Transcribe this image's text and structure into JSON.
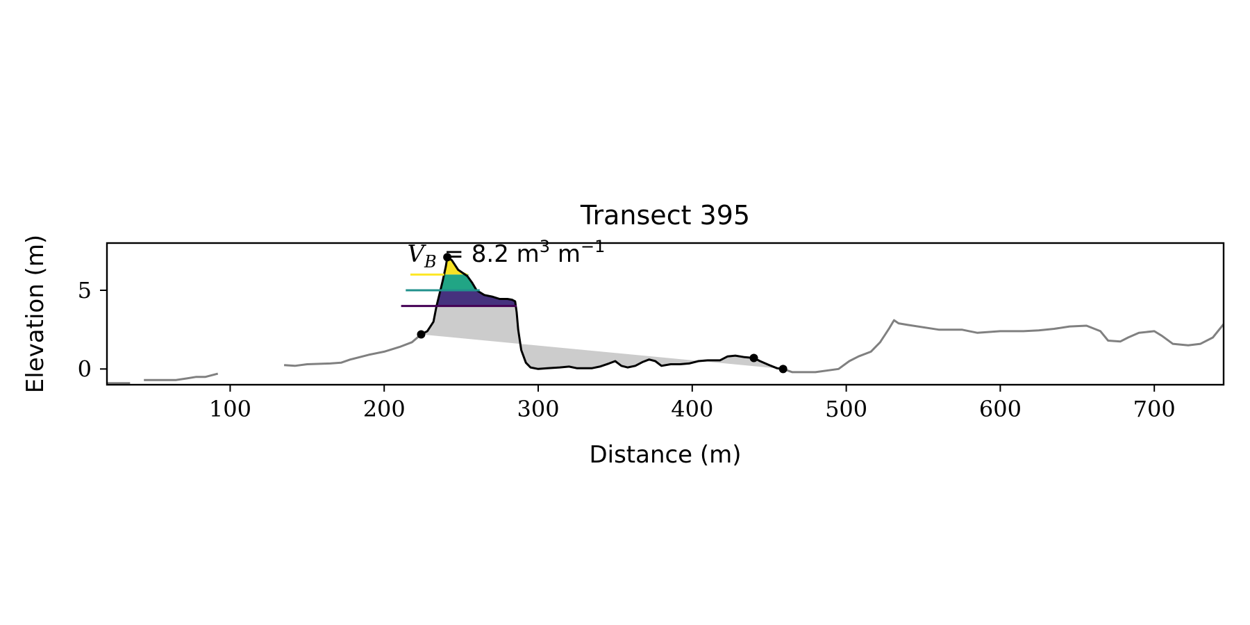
{
  "chart_data": {
    "type": "line",
    "title": "Transect 395",
    "xlabel": "Distance (m)",
    "ylabel": "Elevation (m)",
    "xlim": [
      20,
      745
    ],
    "ylim": [
      -1,
      8
    ],
    "xticks": [
      100,
      200,
      300,
      400,
      500,
      600,
      700
    ],
    "xtick_labels": [
      "100",
      "200",
      "300",
      "400",
      "500",
      "600",
      "700"
    ],
    "yticks": [
      0,
      5
    ],
    "ytick_labels": [
      "0",
      "5"
    ],
    "grid": false,
    "annotation": {
      "lead": "V",
      "subscript": "B",
      "rest": " = 8.2 m",
      "sup1": "3",
      "mid": " m",
      "sup2": "−1",
      "x": 215,
      "y": 6.8
    },
    "colors": {
      "full_profile": "#808080",
      "dune_profile": "#000000",
      "volume_fill": "#cccccc",
      "level_low": "#440154",
      "level_mid": "#21918c",
      "level_high": "#fde725",
      "fill_low": "#46327e",
      "fill_mid": "#21a585",
      "fill_high": "#f7e225"
    },
    "series": [
      {
        "role": "full_profile",
        "segments": [
          [
            [
              20,
              -0.9
            ],
            [
              35,
              -0.9
            ]
          ],
          [
            [
              44,
              -0.7
            ],
            [
              55,
              -0.7
            ],
            [
              65,
              -0.7
            ],
            [
              72,
              -0.6
            ],
            [
              78,
              -0.5
            ],
            [
              84,
              -0.5
            ],
            [
              92,
              -0.3
            ]
          ],
          [
            [
              135,
              0.25
            ],
            [
              142,
              0.2
            ],
            [
              150,
              0.3
            ],
            [
              165,
              0.35
            ],
            [
              172,
              0.4
            ],
            [
              178,
              0.6
            ],
            [
              190,
              0.9
            ],
            [
              200,
              1.1
            ],
            [
              210,
              1.4
            ],
            [
              218,
              1.7
            ],
            [
              224,
              2.2
            ]
          ],
          [
            [
              459,
              0
            ],
            [
              465,
              -0.2
            ],
            [
              468,
              -0.2
            ],
            [
              480,
              -0.2
            ],
            [
              495,
              0
            ],
            [
              502,
              0.5
            ],
            [
              508,
              0.8
            ],
            [
              516,
              1.1
            ],
            [
              522,
              1.7
            ],
            [
              528,
              2.6
            ],
            [
              531,
              3.1
            ],
            [
              534,
              2.9
            ],
            [
              540,
              2.8
            ],
            [
              560,
              2.5
            ],
            [
              575,
              2.5
            ],
            [
              585,
              2.3
            ],
            [
              600,
              2.4
            ],
            [
              615,
              2.4
            ],
            [
              625,
              2.45
            ],
            [
              635,
              2.55
            ],
            [
              645,
              2.7
            ],
            [
              656,
              2.75
            ],
            [
              665,
              2.4
            ],
            [
              670,
              1.8
            ],
            [
              678,
              1.75
            ],
            [
              683,
              2.0
            ],
            [
              690,
              2.3
            ],
            [
              700,
              2.4
            ],
            [
              705,
              2.1
            ],
            [
              712,
              1.6
            ],
            [
              722,
              1.5
            ],
            [
              730,
              1.6
            ],
            [
              738,
              2.0
            ],
            [
              745,
              2.85
            ]
          ]
        ]
      },
      {
        "role": "dune_profile",
        "points": [
          [
            224,
            2.2
          ],
          [
            228,
            2.4
          ],
          [
            232,
            3.0
          ],
          [
            234,
            4.0
          ],
          [
            236,
            4.8
          ],
          [
            238,
            5.6
          ],
          [
            240,
            6.5
          ],
          [
            241,
            7.1
          ],
          [
            244,
            6.9
          ],
          [
            248,
            6.3
          ],
          [
            254,
            5.9
          ],
          [
            257,
            5.5
          ],
          [
            260,
            5.0
          ],
          [
            265,
            4.7
          ],
          [
            270,
            4.6
          ],
          [
            275,
            4.45
          ],
          [
            280,
            4.45
          ],
          [
            283,
            4.4
          ],
          [
            285,
            4.3
          ],
          [
            286,
            3.6
          ],
          [
            287,
            2.5
          ],
          [
            289,
            1.2
          ],
          [
            292,
            0.4
          ],
          [
            295,
            0.1
          ],
          [
            300,
            0.0
          ],
          [
            306,
            0.05
          ],
          [
            314,
            0.1
          ],
          [
            320,
            0.15
          ],
          [
            325,
            0.05
          ],
          [
            335,
            0.05
          ],
          [
            340,
            0.15
          ],
          [
            346,
            0.35
          ],
          [
            350,
            0.5
          ],
          [
            354,
            0.2
          ],
          [
            358,
            0.1
          ],
          [
            363,
            0.2
          ],
          [
            368,
            0.45
          ],
          [
            372,
            0.6
          ],
          [
            376,
            0.5
          ],
          [
            380,
            0.2
          ],
          [
            386,
            0.3
          ],
          [
            392,
            0.3
          ],
          [
            398,
            0.35
          ],
          [
            404,
            0.5
          ],
          [
            410,
            0.55
          ],
          [
            418,
            0.55
          ],
          [
            423,
            0.8
          ],
          [
            428,
            0.85
          ],
          [
            434,
            0.75
          ],
          [
            440,
            0.7
          ],
          [
            444,
            0.5
          ],
          [
            450,
            0.25
          ],
          [
            455,
            0.05
          ],
          [
            459,
            0.0
          ]
        ]
      }
    ],
    "markers": [
      [
        224,
        2.2
      ],
      [
        241,
        7.1
      ],
      [
        440,
        0.7
      ],
      [
        459,
        0.0
      ]
    ],
    "volume_region": {
      "polygon": [
        [
          232,
          3.0
        ],
        [
          234,
          4.0
        ],
        [
          286,
          4.0
        ],
        [
          287,
          2.5
        ],
        [
          289,
          1.2
        ],
        [
          292,
          0.4
        ],
        [
          295,
          0.1
        ],
        [
          300,
          0.0
        ],
        [
          306,
          0.05
        ],
        [
          314,
          0.1
        ],
        [
          320,
          0.15
        ],
        [
          325,
          0.05
        ],
        [
          335,
          0.05
        ],
        [
          340,
          0.15
        ],
        [
          346,
          0.35
        ],
        [
          350,
          0.5
        ],
        [
          354,
          0.2
        ],
        [
          358,
          0.1
        ],
        [
          363,
          0.2
        ],
        [
          368,
          0.45
        ],
        [
          372,
          0.6
        ],
        [
          376,
          0.5
        ],
        [
          380,
          0.2
        ],
        [
          386,
          0.3
        ],
        [
          392,
          0.3
        ],
        [
          398,
          0.35
        ],
        [
          404,
          0.5
        ],
        [
          410,
          0.55
        ],
        [
          418,
          0.55
        ],
        [
          423,
          0.8
        ],
        [
          428,
          0.85
        ],
        [
          434,
          0.75
        ],
        [
          440,
          0.7
        ],
        [
          444,
          0.5
        ],
        [
          450,
          0.25
        ],
        [
          455,
          0.05
        ],
        [
          459,
          0.0
        ],
        [
          224,
          2.2
        ],
        [
          228,
          2.4
        ]
      ]
    },
    "level_fills": [
      {
        "level": "low",
        "polygon": [
          [
            234,
            4.0
          ],
          [
            236,
            4.8
          ],
          [
            237,
            5.0
          ],
          [
            260,
            5.0
          ],
          [
            265,
            4.7
          ],
          [
            270,
            4.6
          ],
          [
            275,
            4.45
          ],
          [
            280,
            4.45
          ],
          [
            283,
            4.4
          ],
          [
            285,
            4.3
          ],
          [
            286,
            4.0
          ]
        ]
      },
      {
        "level": "mid",
        "polygon": [
          [
            237,
            5.0
          ],
          [
            238,
            5.6
          ],
          [
            239,
            6.0
          ],
          [
            255,
            6.0
          ],
          [
            254,
            5.9
          ],
          [
            257,
            5.5
          ],
          [
            260,
            5.0
          ]
        ]
      },
      {
        "level": "high",
        "polygon": [
          [
            239,
            6.0
          ],
          [
            240,
            6.5
          ],
          [
            241,
            7.1
          ],
          [
            244,
            6.9
          ],
          [
            248,
            6.3
          ],
          [
            255,
            6.0
          ]
        ]
      }
    ],
    "level_lines": [
      {
        "level": "high",
        "y": 6.0,
        "x0": 217,
        "x1": 239
      },
      {
        "level": "mid",
        "y": 5.0,
        "x0": 214,
        "x1": 262
      },
      {
        "level": "low",
        "y": 4.0,
        "x0": 211,
        "x1": 286
      }
    ]
  }
}
